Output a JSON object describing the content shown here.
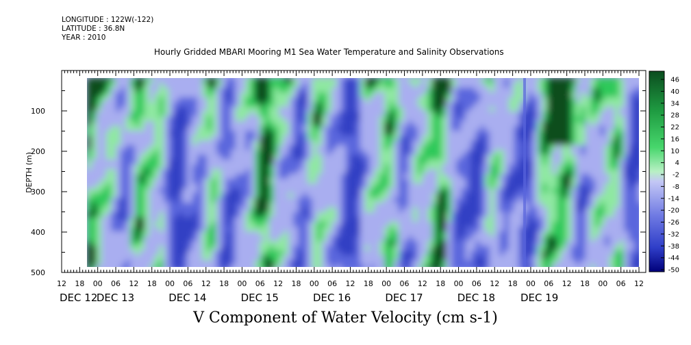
{
  "header": {
    "longitude": "LONGITUDE : 122W(-122)",
    "latitude": "LATITUDE : 36.8N",
    "year": "YEAR : 2010"
  },
  "chart_data": {
    "type": "heatmap",
    "title": "Hourly Gridded MBARI Mooring M1 Sea Water Temperature and Salinity Observations",
    "xlabel": "V Component of Water Velocity (cm s-1)",
    "ylabel": "DEPTH (m)",
    "ylim": [
      500,
      0
    ],
    "y_ticks": [
      100,
      200,
      300,
      400,
      500
    ],
    "x_hour_ticks": [
      "12",
      "18",
      "00",
      "06",
      "12",
      "18",
      "00",
      "06",
      "12",
      "18",
      "00",
      "06",
      "12",
      "18",
      "00",
      "06",
      "12",
      "18",
      "00",
      "06",
      "12",
      "18",
      "00",
      "06",
      "12",
      "18",
      "00",
      "06",
      "12",
      "18",
      "00",
      "06",
      "12"
    ],
    "x_date_labels": [
      "DEC 12",
      "DEC 13",
      "DEC 14",
      "DEC 15",
      "DEC 16",
      "DEC 17",
      "DEC 18",
      "DEC 19"
    ],
    "colorbar_labels": [
      "46",
      "40",
      "34",
      "28",
      "22",
      "16",
      "10",
      "4",
      "-2",
      "-8",
      "-14",
      "-20",
      "-26",
      "-32",
      "-38",
      "-44",
      "-50"
    ],
    "colorbar_range": [
      -50,
      50
    ],
    "colors": {
      "strong_positive": "#0b4d1f",
      "positive": "#2ec95a",
      "weak_positive": "#8fe8a2",
      "weak_negative": "#a9aef0",
      "negative": "#5a66dd",
      "strong_negative": "#00007a"
    }
  }
}
